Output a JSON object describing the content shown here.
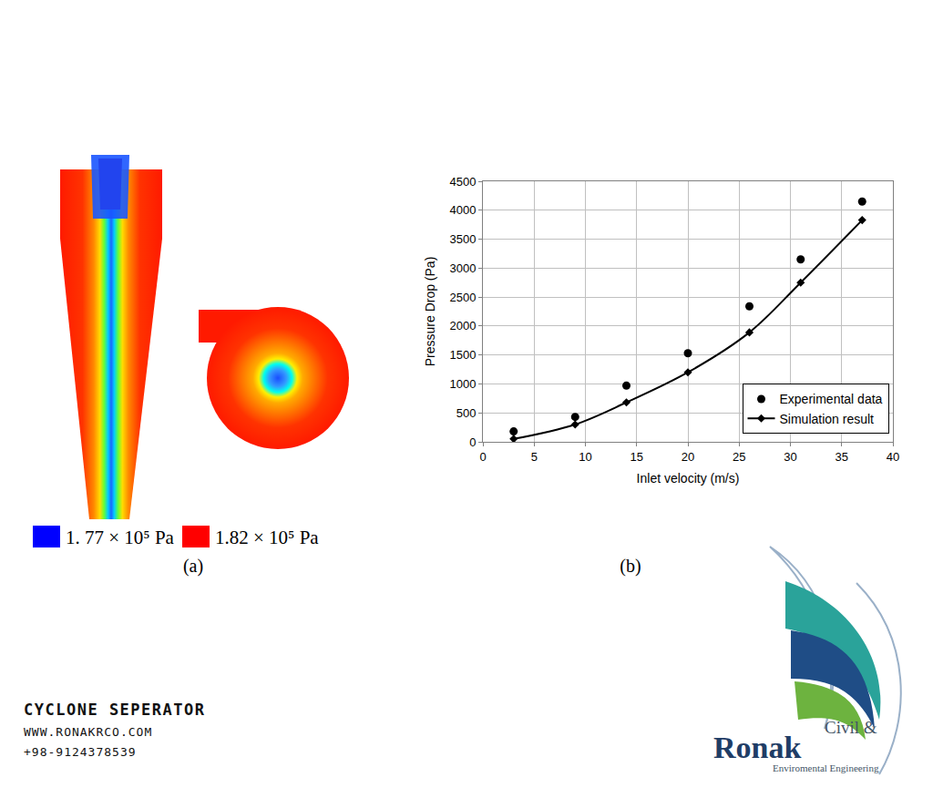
{
  "chart_data": {
    "type": "scatter",
    "x_label": "Inlet velocity (m/s)",
    "y_label": "Pressure Drop (Pa)",
    "x": [
      3,
      9,
      14,
      20,
      26,
      31,
      37
    ],
    "series": [
      {
        "name": "Experimental data",
        "type": "scatter",
        "marker": "circle",
        "color": "#000000",
        "values": [
          180,
          430,
          970,
          1530,
          2340,
          3150,
          4150
        ]
      },
      {
        "name": "Simulation result",
        "type": "line",
        "marker": "diamond",
        "color": "#000000",
        "line_style": "solid",
        "values": [
          50,
          300,
          680,
          1200,
          1890,
          2750,
          3830
        ]
      }
    ],
    "xlim": [
      0,
      40
    ],
    "xticks": [
      0,
      5,
      10,
      15,
      20,
      25,
      30,
      35,
      40
    ],
    "ylim": [
      0,
      4500
    ],
    "yticks": [
      0,
      500,
      1000,
      1500,
      2000,
      2500,
      3000,
      3500,
      4000,
      4500
    ],
    "grid": true,
    "legend": "lower right"
  },
  "chart_label": "(b)",
  "contour_panel": {
    "label": "(a)",
    "legend": [
      {
        "label": "1. 77 × 10⁵ Pa",
        "color": "#0000ff"
      },
      {
        "label": "1.82 × 10⁵ Pa",
        "color": "#ff0000"
      }
    ]
  },
  "footer": {
    "title": "CYCLONE SEPERATOR",
    "website": "WWW.RONAKRCO.COM",
    "phone": "+98-9124378539"
  },
  "logo": {
    "line1": "Civil &",
    "name": "Ronak",
    "tagline": "Enviromental Engineering"
  }
}
